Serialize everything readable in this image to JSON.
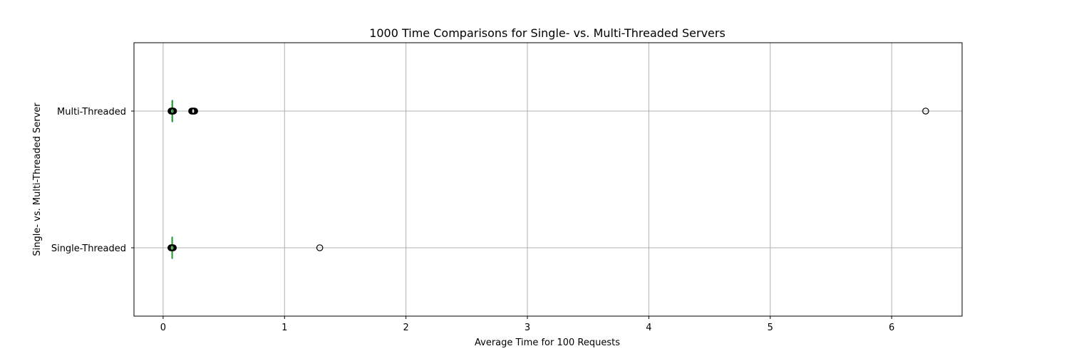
{
  "chart_data": {
    "type": "boxplot-horizontal",
    "title": "1000 Time Comparisons for Single- vs. Multi-Threaded Servers",
    "xlabel": "Average Time for 100 Requests",
    "ylabel": "Single- vs. Multi-Threaded Server",
    "xlim": [
      -0.24,
      6.58
    ],
    "xticks": [
      0,
      1,
      2,
      3,
      4,
      5,
      6
    ],
    "xtick_labels": [
      "0",
      "1",
      "2",
      "3",
      "4",
      "5",
      "6"
    ],
    "grid": true,
    "colors": {
      "median": "#2ca02c",
      "box": "#1f77b4",
      "outlier": "#000000",
      "grid": "#b0b0b0",
      "axes": "#000000"
    },
    "series": [
      {
        "name": "Multi-Threaded",
        "position": 2,
        "whisker_low": 0.07,
        "q1": 0.073,
        "median": 0.075,
        "q3": 0.078,
        "whisker_high": 0.083,
        "outliers": [
          0.065,
          0.068,
          0.07,
          0.074,
          0.079,
          0.083,
          0.086,
          0.235,
          0.24,
          0.245,
          0.25,
          0.255,
          0.26,
          6.28
        ]
      },
      {
        "name": "Single-Threaded",
        "position": 1,
        "whisker_low": 0.07,
        "q1": 0.072,
        "median": 0.074,
        "q3": 0.077,
        "whisker_high": 0.08,
        "outliers": [
          0.064,
          0.067,
          0.07,
          0.073,
          0.078,
          0.081,
          0.084,
          1.29
        ]
      }
    ]
  }
}
